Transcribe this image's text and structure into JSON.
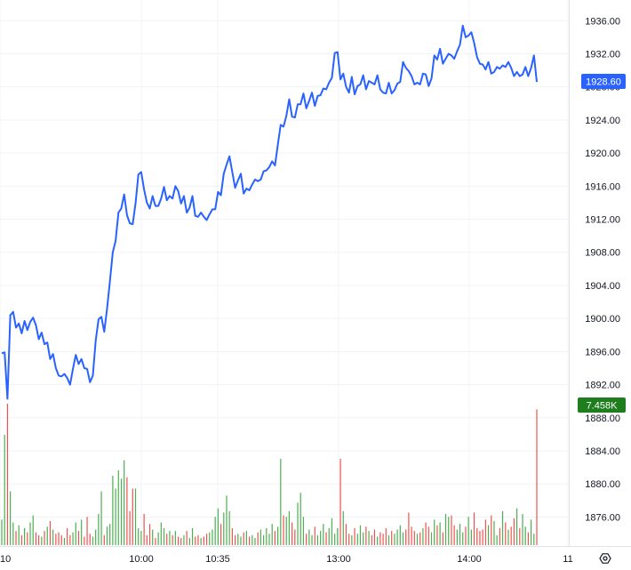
{
  "chart_data": {
    "type": "line",
    "price_axis": {
      "ticks": [
        "1936.00",
        "1932.00",
        "1928.00",
        "1924.00",
        "1920.00",
        "1916.00",
        "1912.00",
        "1908.00",
        "1904.00",
        "1900.00",
        "1896.00",
        "1892.00",
        "1888.00",
        "1884.00",
        "1880.00",
        "1876.00"
      ],
      "range": [
        1872.5,
        1938.5
      ]
    },
    "time_axis": {
      "labels": [
        "10",
        "10:00",
        "10:35",
        "13:00",
        "14:00",
        "11"
      ]
    },
    "last_price_label": "1928.60",
    "last_volume_label": "7.458K",
    "colors": {
      "line": "#2962ff",
      "last_price_bg": "#2962ff",
      "volume_label_bg": "#1e7e1e",
      "volume_up": "#26a69a",
      "volume_up_hist": "#4caf50",
      "volume_down": "#ef5350"
    },
    "grid": true,
    "price_series": [
      1895.8,
      1895.9,
      1890.3,
      1900.4,
      1900.8,
      1898.9,
      1899.4,
      1898.2,
      1899.7,
      1898.6,
      1899.6,
      1900.1,
      1899.2,
      1897.5,
      1898.3,
      1896.9,
      1897.1,
      1895.1,
      1895.7,
      1894.0,
      1893.1,
      1893.0,
      1893.3,
      1892.8,
      1892.0,
      1893.9,
      1895.6,
      1894.5,
      1895.1,
      1894.0,
      1893.9,
      1892.3,
      1893.1,
      1897.3,
      1899.9,
      1900.2,
      1898.4,
      1901.2,
      1904.5,
      1908.0,
      1909.4,
      1912.8,
      1913.3,
      1915.0,
      1912.5,
      1911.5,
      1911.4,
      1913.9,
      1917.4,
      1917.7,
      1915.6,
      1914.0,
      1913.3,
      1914.8,
      1913.6,
      1913.6,
      1914.5,
      1915.9,
      1914.3,
      1914.8,
      1914.5,
      1916.0,
      1915.4,
      1913.9,
      1914.8,
      1912.8,
      1913.4,
      1914.8,
      1912.4,
      1912.3,
      1912.8,
      1912.3,
      1911.9,
      1912.6,
      1913.2,
      1913.2,
      1915.3,
      1914.9,
      1917.5,
      1918.6,
      1919.6,
      1917.7,
      1915.8,
      1916.7,
      1917.5,
      1915.1,
      1915.7,
      1915.5,
      1916.2,
      1916.8,
      1916.6,
      1916.8,
      1917.8,
      1917.9,
      1918.3,
      1919.0,
      1918.5,
      1921.0,
      1923.4,
      1923.2,
      1924.5,
      1926.5,
      1924.4,
      1924.3,
      1925.9,
      1925.9,
      1927.2,
      1925.4,
      1926.3,
      1927.3,
      1925.7,
      1926.9,
      1927.0,
      1927.8,
      1927.7,
      1928.5,
      1929.1,
      1932.1,
      1932.2,
      1928.9,
      1929.6,
      1928.0,
      1927.3,
      1929.2,
      1927.1,
      1928.1,
      1928.3,
      1929.4,
      1927.7,
      1928.7,
      1928.5,
      1928.3,
      1929.4,
      1927.7,
      1927.3,
      1927.2,
      1928.5,
      1927.2,
      1927.6,
      1928.4,
      1928.6,
      1931.0,
      1930.3,
      1929.9,
      1929.3,
      1928.3,
      1928.5,
      1928.3,
      1929.6,
      1929.5,
      1928.1,
      1929.0,
      1931.8,
      1931.3,
      1932.6,
      1930.8,
      1931.4,
      1932.0,
      1931.8,
      1931.4,
      1932.3,
      1933.1,
      1935.4,
      1934.0,
      1934.2,
      1934.6,
      1933.3,
      1931.6,
      1930.8,
      1930.7,
      1930.1,
      1931.0,
      1929.6,
      1929.8,
      1930.4,
      1930.2,
      1930.6,
      1930.4,
      1931.0,
      1930.3,
      1929.3,
      1929.8,
      1929.3,
      1929.5,
      1930.4,
      1929.3,
      1930.3,
      1931.8,
      1928.6
    ],
    "volume_series": [
      0.18,
      0.78,
      1.0,
      0.38,
      0.16,
      0.1,
      0.14,
      0.07,
      0.12,
      0.09,
      0.16,
      0.21,
      0.09,
      0.07,
      0.06,
      0.1,
      0.13,
      0.17,
      0.11,
      0.08,
      0.09,
      0.07,
      0.05,
      0.12,
      0.07,
      0.09,
      0.16,
      0.1,
      0.18,
      0.06,
      0.2,
      0.08,
      0.06,
      0.11,
      0.22,
      0.38,
      0.07,
      0.13,
      0.15,
      0.49,
      0.4,
      0.53,
      0.47,
      0.6,
      0.48,
      0.24,
      0.4,
      0.4,
      0.12,
      0.1,
      0.22,
      0.07,
      0.15,
      0.11,
      0.05,
      0.09,
      0.16,
      0.12,
      0.08,
      0.1,
      0.07,
      0.1,
      0.06,
      0.05,
      0.07,
      0.1,
      0.05,
      0.12,
      0.06,
      0.07,
      0.05,
      0.06,
      0.08,
      0.09,
      0.11,
      0.2,
      0.26,
      0.15,
      0.23,
      0.35,
      0.24,
      0.12,
      0.07,
      0.08,
      0.06,
      0.09,
      0.1,
      0.06,
      0.07,
      0.05,
      0.09,
      0.11,
      0.07,
      0.12,
      0.08,
      0.15,
      0.1,
      0.13,
      0.61,
      0.21,
      0.2,
      0.24,
      0.16,
      0.11,
      0.3,
      0.37,
      0.2,
      0.08,
      0.11,
      0.07,
      0.13,
      0.07,
      0.1,
      0.15,
      0.09,
      0.12,
      0.19,
      0.08,
      0.12,
      0.61,
      0.24,
      0.15,
      0.08,
      0.07,
      0.12,
      0.08,
      0.14,
      0.09,
      0.13,
      0.1,
      0.07,
      0.11,
      0.06,
      0.09,
      0.08,
      0.12,
      0.07,
      0.1,
      0.08,
      0.11,
      0.14,
      0.09,
      0.11,
      0.23,
      0.13,
      0.1,
      0.08,
      0.09,
      0.12,
      0.16,
      0.13,
      0.09,
      0.18,
      0.14,
      0.16,
      0.09,
      0.22,
      0.2,
      0.21,
      0.14,
      0.11,
      0.15,
      0.09,
      0.13,
      0.2,
      0.11,
      0.23,
      0.12,
      0.1,
      0.11,
      0.18,
      0.14,
      0.21,
      0.17,
      0.07,
      0.12,
      0.24,
      0.16,
      0.11,
      0.13,
      0.19,
      0.26,
      0.12,
      0.22,
      0.13,
      0.09,
      0.18,
      0.08,
      0.96
    ]
  }
}
